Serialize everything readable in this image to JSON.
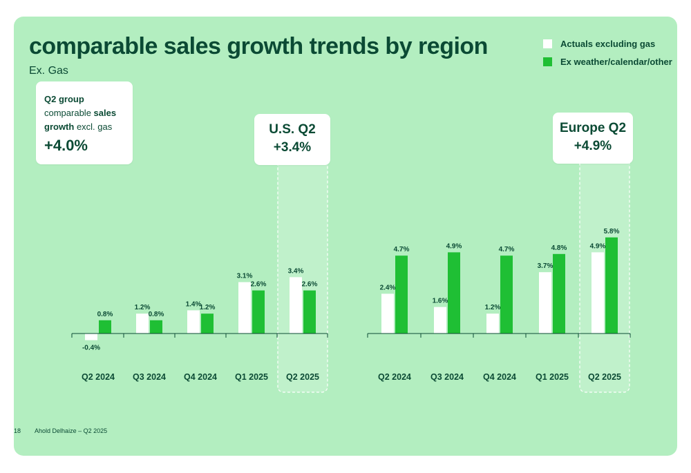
{
  "slide": {
    "title": "comparable sales growth trends by region",
    "subtitle": "Ex. Gas",
    "legend": [
      {
        "label": "Actuals excluding gas",
        "color": "#ffffff"
      },
      {
        "label": "Ex weather/calendar/other",
        "color": "#1fbf34"
      }
    ],
    "group_callout": {
      "line1": "Q2 group",
      "line2_a": "comparable ",
      "line2_b": "sales",
      "line3_a": "growth",
      "line3_b": " excl. gas",
      "value": "+4.0%"
    },
    "us_callout": {
      "label": "U.S. Q2",
      "value": "+3.4%"
    },
    "eu_callout": {
      "label": "Europe Q2",
      "value": "+4.9%"
    },
    "footer": {
      "page": "18",
      "text": "Ahold Delhaize – Q2 2025"
    }
  },
  "chart_data": [
    {
      "type": "bar",
      "region": "U.S.",
      "categories": [
        "Q2 2024",
        "Q3 2024",
        "Q4 2024",
        "Q1 2025",
        "Q2 2025"
      ],
      "series": [
        {
          "name": "Actuals excluding gas",
          "values": [
            -0.4,
            1.2,
            1.4,
            3.1,
            3.4
          ],
          "labels": [
            "-0.4%",
            "1.2%",
            "1.4%",
            "3.1%",
            "3.4%"
          ],
          "color": "#ffffff"
        },
        {
          "name": "Ex weather/calendar/other",
          "values": [
            0.8,
            0.8,
            1.2,
            2.6,
            2.6
          ],
          "labels": [
            "0.8%",
            "0.8%",
            "1.2%",
            "2.6%",
            "2.6%"
          ],
          "color": "#1fbf34"
        }
      ],
      "highlight_category": "Q2 2025"
    },
    {
      "type": "bar",
      "region": "Europe",
      "categories": [
        "Q2 2024",
        "Q3 2024",
        "Q4 2024",
        "Q1 2025",
        "Q2 2025"
      ],
      "series": [
        {
          "name": "Actuals excluding gas",
          "values": [
            2.4,
            1.6,
            1.2,
            3.7,
            4.9
          ],
          "labels": [
            "2.4%",
            "1.6%",
            "1.2%",
            "3.7%",
            "4.9%"
          ],
          "color": "#ffffff"
        },
        {
          "name": "Ex weather/calendar/other",
          "values": [
            4.7,
            4.9,
            4.7,
            4.8,
            5.8
          ],
          "labels": [
            "4.7%",
            "4.9%",
            "4.7%",
            "4.8%",
            "5.8%"
          ],
          "color": "#1fbf34"
        }
      ],
      "highlight_category": "Q2 2025"
    }
  ]
}
